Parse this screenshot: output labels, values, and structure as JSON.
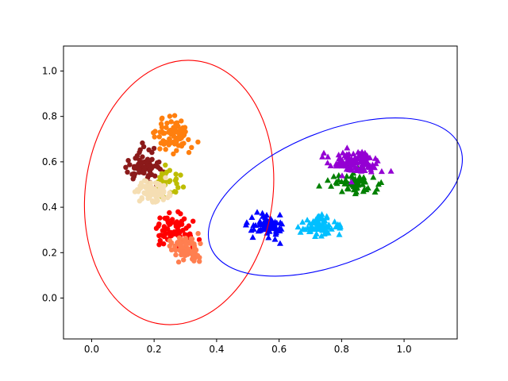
{
  "chart_data": {
    "type": "scatter",
    "title": "",
    "xlabel": "",
    "ylabel": "",
    "xlim": [
      -0.09,
      1.17
    ],
    "ylim": [
      -0.18,
      1.11
    ],
    "grid": false,
    "xticks": [
      "0.0",
      "0.2",
      "0.4",
      "0.6",
      "0.8",
      "1.0"
    ],
    "yticks": [
      "0.0",
      "0.2",
      "0.4",
      "0.6",
      "0.8",
      "1.0"
    ],
    "ellipses": [
      {
        "color": "#ff0000",
        "center": [
          0.28,
          0.465
        ],
        "width": 0.6,
        "height": 1.17,
        "angle": -8
      },
      {
        "color": "#0000ff",
        "center": [
          0.78,
          0.445
        ],
        "width": 0.86,
        "height": 0.58,
        "angle": 22
      }
    ],
    "series": [
      {
        "marker": "circle",
        "color": "#ff7f0e",
        "cluster": [
          0.26,
          0.72,
          0.07,
          0.08
        ],
        "count": 90
      },
      {
        "marker": "circle",
        "color": "#8b1a1a",
        "cluster": [
          0.17,
          0.58,
          0.07,
          0.09
        ],
        "count": 70
      },
      {
        "marker": "circle",
        "color": "#bdbd00",
        "cluster": [
          0.24,
          0.5,
          0.07,
          0.08
        ],
        "count": 35
      },
      {
        "marker": "circle",
        "color": "#f5deb3",
        "cluster": [
          0.19,
          0.47,
          0.07,
          0.06
        ],
        "count": 90
      },
      {
        "marker": "circle",
        "color": "#ff0000",
        "cluster": [
          0.27,
          0.3,
          0.07,
          0.08
        ],
        "count": 80
      },
      {
        "marker": "circle",
        "color": "#ff7f50",
        "cluster": [
          0.3,
          0.22,
          0.07,
          0.06
        ],
        "count": 80
      },
      {
        "marker": "triangle",
        "color": "#0000ff",
        "cluster": [
          0.56,
          0.32,
          0.07,
          0.06
        ],
        "count": 70
      },
      {
        "marker": "triangle",
        "color": "#00bfff",
        "cluster": [
          0.74,
          0.32,
          0.07,
          0.05
        ],
        "count": 70
      },
      {
        "marker": "triangle",
        "color": "#008000",
        "cluster": [
          0.84,
          0.5,
          0.1,
          0.07
        ],
        "count": 60
      },
      {
        "marker": "triangle",
        "color": "#9400d3",
        "cluster": [
          0.84,
          0.6,
          0.09,
          0.07
        ],
        "count": 110
      }
    ]
  }
}
